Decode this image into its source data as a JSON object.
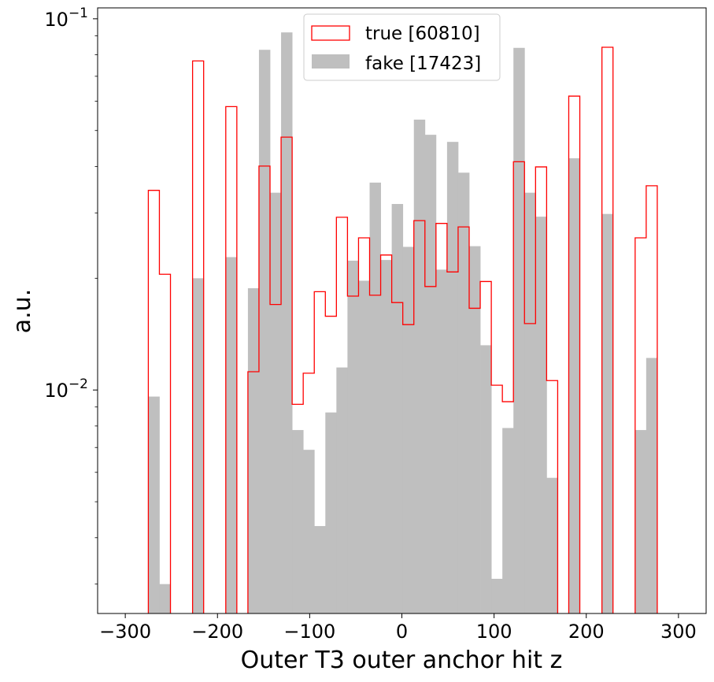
{
  "chart_data": {
    "type": "bar",
    "subtype": "histogram-step",
    "xlabel": "Outer T3 outer anchor hit z",
    "ylabel": "a.u.",
    "yscale": "log",
    "xlim": [
      -330,
      330
    ],
    "ylim": [
      0.0025,
      0.107
    ],
    "x_ticks": [
      -300,
      -200,
      -100,
      0,
      100,
      200,
      300
    ],
    "x_tick_labels": [
      "−300",
      "−200",
      "−100",
      "0",
      "100",
      "200",
      "300"
    ],
    "y_ticks": [
      {
        "value": 0.1,
        "base": "10",
        "exp": "−1"
      },
      {
        "value": 0.01,
        "base": "10",
        "exp": "−2"
      }
    ],
    "legend": {
      "position": "top-center"
    },
    "bin_edges": [
      -275,
      -263,
      -251,
      -239,
      -227,
      -215,
      -203,
      -191,
      -179,
      -167,
      -155,
      -143,
      -131,
      -119,
      -107,
      -95,
      -83,
      -71,
      -59,
      -47,
      -35,
      -23,
      -11,
      1,
      13,
      25,
      37,
      49,
      61,
      73,
      85,
      97,
      109,
      121,
      133,
      145,
      157,
      169,
      181,
      193,
      205,
      217,
      229,
      241,
      253,
      265,
      277
    ],
    "series": [
      {
        "name": "true [60810]",
        "style": "step",
        "color": "#ff0000",
        "values": [
          0.0345,
          0.0205,
          0,
          0,
          0.077,
          0,
          0,
          0.058,
          0,
          0.0112,
          0.0401,
          0.017,
          0.048,
          0.00915,
          0.0111,
          0.0184,
          0.0158,
          0.0292,
          0.0179,
          0.0257,
          0.018,
          0.0231,
          0.0172,
          0.015,
          0.0286,
          0.019,
          0.0281,
          0.0208,
          0.0275,
          0.0166,
          0.0196,
          0.0103,
          0.0093,
          0.0412,
          0.0151,
          0.0399,
          0.0106,
          0,
          0.0619,
          0,
          0,
          0.0838,
          0,
          0,
          0.0257,
          0.0355
        ]
      },
      {
        "name": "fake [17423]",
        "style": "filled",
        "color": "#bfbfbf",
        "values": [
          0.0096,
          0.003,
          0,
          0,
          0.02,
          0,
          0,
          0.0228,
          0,
          0.0188,
          0.0825,
          0.034,
          0.0919,
          0.0078,
          0.0069,
          0.0043,
          0.0087,
          0.0115,
          0.0223,
          0.0197,
          0.0362,
          0.0224,
          0.0317,
          0.0243,
          0.0535,
          0.0487,
          0.0211,
          0.0466,
          0.0385,
          0.0244,
          0.0132,
          0.0031,
          0.0079,
          0.0835,
          0.034,
          0.0293,
          0.0058,
          0,
          0.0421,
          0,
          0,
          0.0298,
          0,
          0,
          0.0078,
          0.0122
        ]
      }
    ]
  }
}
